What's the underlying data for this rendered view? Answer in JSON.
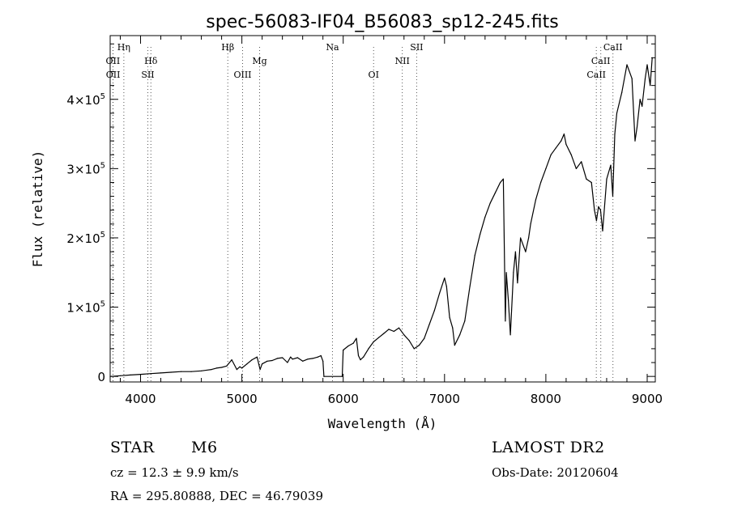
{
  "chart_data": {
    "type": "line",
    "title": "spec-56083-IF04_B56083_sp12-245.fits",
    "xlabel": "Wavelength (Å)",
    "ylabel": "Flux (relative)",
    "xlim": [
      3700,
      9080
    ],
    "ylim": [
      -8000,
      492000
    ],
    "x_ticks": [
      4000,
      5000,
      6000,
      7000,
      8000,
      9000
    ],
    "y_ticks": [
      {
        "value": 0,
        "base": "0",
        "exp": ""
      },
      {
        "value": 100000,
        "base": "1×10",
        "exp": "5"
      },
      {
        "value": 200000,
        "base": "2×10",
        "exp": "5"
      },
      {
        "value": 300000,
        "base": "3×10",
        "exp": "5"
      },
      {
        "value": 400000,
        "base": "4×10",
        "exp": "5"
      }
    ],
    "grid": false,
    "line_markers": [
      {
        "label": "Hη",
        "wave": 3835,
        "row": 1
      },
      {
        "label": "OII",
        "wave": 3727,
        "row": 2
      },
      {
        "label": "OII",
        "wave": 3729,
        "row": 3
      },
      {
        "label": "Hδ",
        "wave": 4102,
        "row": 2
      },
      {
        "label": "SII",
        "wave": 4072,
        "row": 3
      },
      {
        "label": "Hβ",
        "wave": 4861,
        "row": 1
      },
      {
        "label": "OIII",
        "wave": 5007,
        "row": 3
      },
      {
        "label": "Mg",
        "wave": 5175,
        "row": 2
      },
      {
        "label": "Na",
        "wave": 5894,
        "row": 1
      },
      {
        "label": "OI",
        "wave": 6300,
        "row": 3
      },
      {
        "label": "NII",
        "wave": 6583,
        "row": 2
      },
      {
        "label": "SII",
        "wave": 6725,
        "row": 1
      },
      {
        "label": "CaII",
        "wave": 8662,
        "row": 1
      },
      {
        "label": "CaII",
        "wave": 8542,
        "row": 2
      },
      {
        "label": "CaII",
        "wave": 8498,
        "row": 3
      }
    ],
    "series": [
      {
        "x": [
          3700,
          3800,
          3900,
          4000,
          4100,
          4200,
          4300,
          4400,
          4500,
          4600,
          4700,
          4750,
          4800,
          4850,
          4900,
          4950,
          4980,
          5000,
          5050,
          5100,
          5150,
          5180,
          5200,
          5250,
          5300,
          5350,
          5400,
          5450,
          5480,
          5500,
          5550,
          5600,
          5650,
          5700,
          5750,
          5780,
          5800,
          5810,
          5990,
          6000,
          6050,
          6100,
          6130,
          6150,
          6170,
          6200,
          6250,
          6300,
          6350,
          6400,
          6450,
          6500,
          6550,
          6600,
          6650,
          6700,
          6750,
          6800,
          6850,
          6900,
          6950,
          7000,
          7020,
          7050,
          7080,
          7100,
          7150,
          7200,
          7250,
          7300,
          7350,
          7400,
          7450,
          7500,
          7550,
          7580,
          7600,
          7610,
          7630,
          7650,
          7680,
          7700,
          7720,
          7750,
          7800,
          7830,
          7850,
          7900,
          7950,
          8000,
          8050,
          8100,
          8150,
          8180,
          8200,
          8250,
          8300,
          8350,
          8400,
          8450,
          8480,
          8500,
          8520,
          8540,
          8560,
          8600,
          8640,
          8660,
          8680,
          8700,
          8750,
          8800,
          8850,
          8880,
          8900,
          8930,
          8950,
          8980,
          9000,
          9030,
          9050
        ],
        "y": [
          0,
          1000,
          2000,
          3000,
          4000,
          5000,
          6000,
          7000,
          7000,
          8000,
          10000,
          12000,
          13000,
          15000,
          24000,
          10000,
          14000,
          12000,
          18000,
          24000,
          28000,
          10000,
          18000,
          22000,
          23000,
          26000,
          27000,
          20000,
          28000,
          25000,
          27000,
          22000,
          25000,
          26000,
          28000,
          30000,
          22000,
          0,
          0,
          38000,
          44000,
          48000,
          55000,
          30000,
          24000,
          28000,
          40000,
          50000,
          56000,
          62000,
          68000,
          65000,
          70000,
          60000,
          52000,
          40000,
          45000,
          55000,
          75000,
          95000,
          120000,
          142000,
          130000,
          85000,
          70000,
          45000,
          60000,
          80000,
          130000,
          175000,
          205000,
          230000,
          250000,
          265000,
          280000,
          285000,
          80000,
          150000,
          110000,
          60000,
          150000,
          180000,
          135000,
          200000,
          180000,
          200000,
          220000,
          255000,
          280000,
          300000,
          320000,
          330000,
          340000,
          350000,
          335000,
          320000,
          300000,
          310000,
          285000,
          280000,
          240000,
          225000,
          245000,
          240000,
          210000,
          285000,
          305000,
          260000,
          350000,
          380000,
          410000,
          450000,
          430000,
          340000,
          360000,
          400000,
          390000,
          430000,
          450000,
          420000,
          460000
        ]
      }
    ]
  },
  "info": {
    "object_class": "STAR",
    "subclass": "M6",
    "survey": "LAMOST DR2",
    "cz": "cz = 12.3 ± 9.9 km/s",
    "obs_date": "Obs-Date: 20120604",
    "coords": "RA = 295.80888, DEC =  46.79039"
  }
}
